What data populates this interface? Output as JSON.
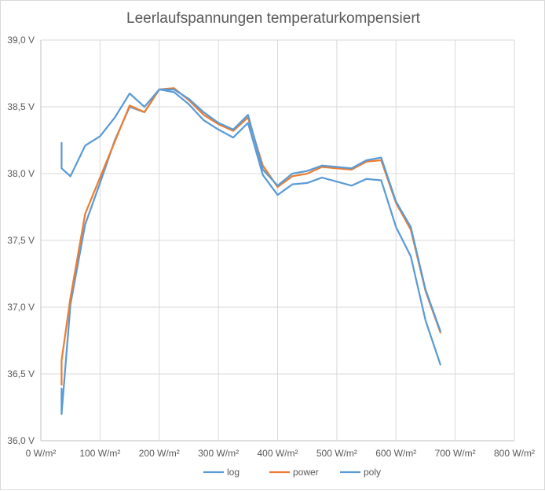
{
  "chart_data": {
    "type": "scatter",
    "title": "Leerlaufspannungen temperaturkompensiert",
    "xlabel": "",
    "ylabel": "",
    "xlim": [
      0,
      800
    ],
    "ylim": [
      36.0,
      39.0
    ],
    "xticks": [
      0,
      100,
      200,
      300,
      400,
      500,
      600,
      700,
      800
    ],
    "yticks": [
      36.0,
      36.5,
      37.0,
      37.5,
      38.0,
      38.5,
      39.0
    ],
    "xtick_labels": [
      "0 W/m²",
      "100 W/m²",
      "200 W/m²",
      "300 W/m²",
      "400 W/m²",
      "500 W/m²",
      "600 W/m²",
      "700 W/m²",
      "800 W/m²"
    ],
    "ytick_labels": [
      "36,0 V",
      "36,5 V",
      "37,0 V",
      "37,5 V",
      "38,0 V",
      "38,5 V",
      "39,0 V"
    ],
    "grid": true,
    "legend_position": "bottom",
    "series": [
      {
        "name": "log",
        "color": "#5b9bd5",
        "x": [
          35,
          35,
          35,
          50,
          75,
          100,
          125,
          150,
          175,
          200,
          225,
          250,
          275,
          300,
          325,
          350,
          375,
          400,
          425,
          450,
          475,
          500,
          525,
          550,
          575,
          600,
          625,
          650,
          675
        ],
        "y": [
          36.2,
          36.39,
          36.2,
          37.02,
          37.62,
          37.93,
          38.25,
          38.5,
          38.46,
          38.63,
          38.61,
          38.52,
          38.4,
          38.33,
          38.27,
          38.38,
          37.99,
          37.84,
          37.92,
          37.93,
          37.97,
          37.94,
          37.91,
          37.96,
          37.95,
          37.6,
          37.38,
          36.9,
          36.57
        ]
      },
      {
        "name": "power",
        "color": "#ed7d31",
        "x": [
          35,
          35,
          35,
          50,
          75,
          100,
          125,
          150,
          175,
          200,
          225,
          250,
          275,
          300,
          325,
          350,
          375,
          400,
          425,
          450,
          475,
          500,
          525,
          550,
          575,
          600,
          625,
          650,
          675
        ],
        "y": [
          36.6,
          36.42,
          36.6,
          37.07,
          37.7,
          37.97,
          38.24,
          38.51,
          38.46,
          38.63,
          38.64,
          38.55,
          38.44,
          38.37,
          38.32,
          38.42,
          38.06,
          37.9,
          37.98,
          38.0,
          38.05,
          38.04,
          38.03,
          38.09,
          38.1,
          37.78,
          37.58,
          37.12,
          36.81
        ]
      },
      {
        "name": "poly",
        "color": "#5b9bd5",
        "x": [
          35,
          35,
          50,
          75,
          100,
          125,
          150,
          175,
          200,
          225,
          250,
          275,
          300,
          325,
          350,
          375,
          400,
          425,
          450,
          475,
          500,
          525,
          550,
          575,
          600,
          625,
          650,
          675
        ],
        "y": [
          38.23,
          38.04,
          37.98,
          38.21,
          38.28,
          38.42,
          38.6,
          38.5,
          38.63,
          38.63,
          38.56,
          38.46,
          38.38,
          38.33,
          38.44,
          38.03,
          37.91,
          38.0,
          38.02,
          38.06,
          38.05,
          38.04,
          38.1,
          38.12,
          37.79,
          37.6,
          37.13,
          36.82
        ]
      }
    ]
  }
}
